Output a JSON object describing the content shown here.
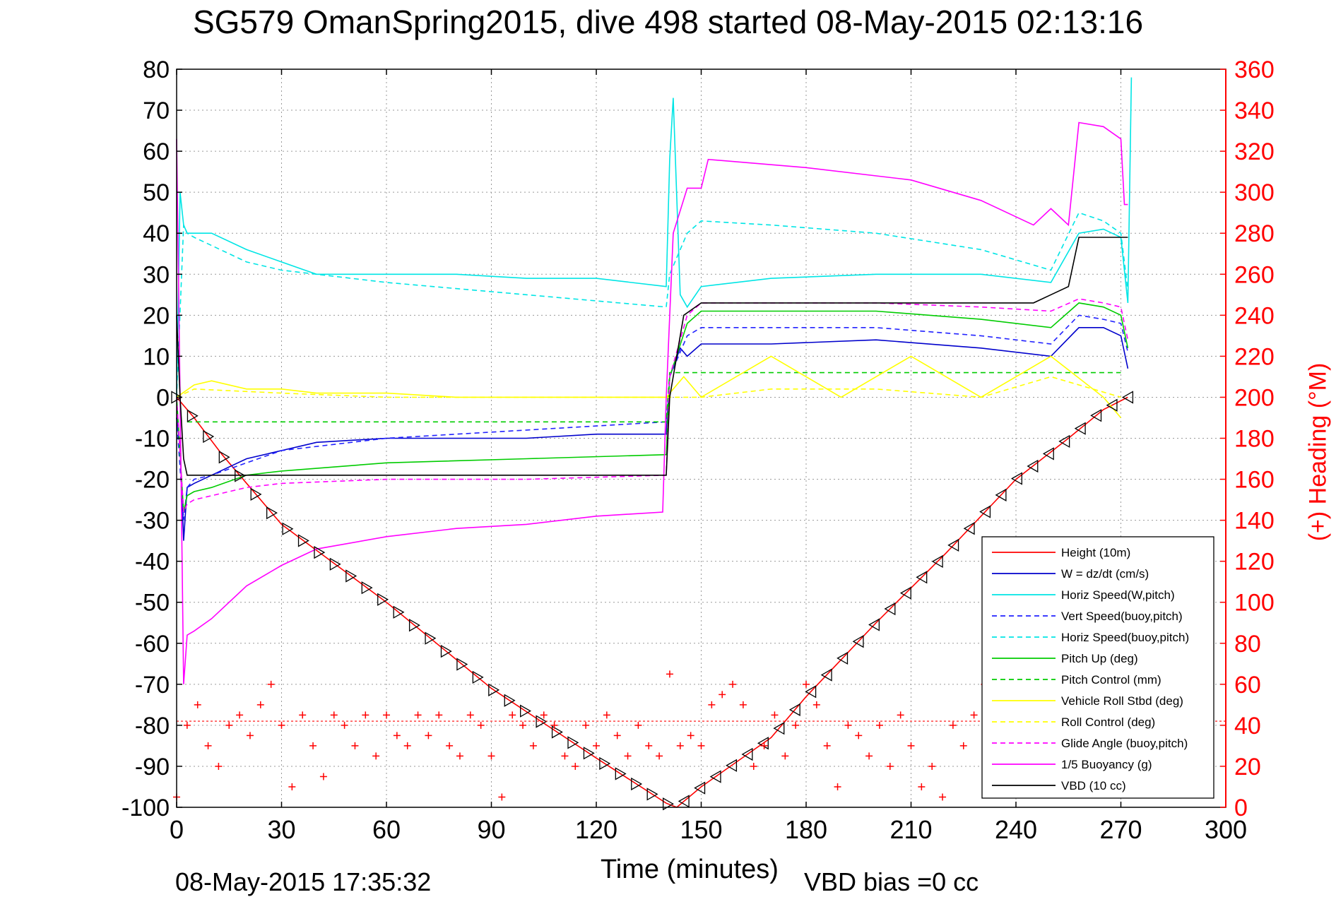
{
  "header": {
    "title": "SG579 OmanSpring2015, dive 498 started 08-May-2015 02:13:16"
  },
  "footer": {
    "date": "08-May-2015 17:35:32",
    "vbd_bias": "VBD bias =0 cc"
  },
  "chart_data": {
    "type": "line",
    "title": "SG579 OmanSpring2015, dive 498 started 08-May-2015 02:13:16",
    "xlabel": "Time (minutes)",
    "ylabel": "",
    "y2label": "(+) Heading (°M)",
    "xlim": [
      0,
      300
    ],
    "ylim": [
      -100,
      80
    ],
    "y2lim": [
      0,
      360
    ],
    "x_ticks": [
      0,
      30,
      60,
      90,
      120,
      150,
      180,
      210,
      240,
      270,
      300
    ],
    "y_ticks": [
      -100,
      -90,
      -80,
      -70,
      -60,
      -50,
      -40,
      -30,
      -20,
      -10,
      0,
      10,
      20,
      30,
      40,
      50,
      60,
      70,
      80
    ],
    "y2_ticks": [
      0,
      20,
      40,
      60,
      80,
      100,
      120,
      140,
      160,
      180,
      200,
      220,
      240,
      260,
      280,
      300,
      320,
      340,
      360
    ],
    "grid": true,
    "legend_position": "bottom-right",
    "colors": {
      "height": "#ff0000",
      "w": "#0000cc",
      "horiz_speed": "#00e5e5",
      "vert_speed": "#2222ff",
      "horiz_speed_buoy": "#00e5e5",
      "pitch_up": "#00cc00",
      "pitch_control": "#00cc00",
      "roll": "#ffff00",
      "roll_control": "#ffff00",
      "glide_angle": "#ff00ff",
      "buoyancy": "#ff00ff",
      "vbd": "#000000",
      "heading": "#ff0000"
    },
    "series": [
      {
        "name": "Height (10m)",
        "color": "#ff0000",
        "dash": "solid",
        "x": [
          0,
          5,
          13,
          30,
          60,
          90,
          120,
          140,
          143,
          150,
          170,
          180,
          200,
          220,
          240,
          255,
          265,
          272
        ],
        "y": [
          0,
          -5,
          -14,
          -31,
          -50,
          -71,
          -88,
          -99,
          -100,
          -95,
          -83,
          -73,
          -55,
          -38,
          -20,
          -10,
          -3,
          0
        ]
      },
      {
        "name": "W = dz/dt (cm/s)",
        "color": "#0000cc",
        "dash": "solid",
        "x": [
          0,
          1,
          2,
          3,
          5,
          10,
          20,
          30,
          40,
          60,
          80,
          100,
          120,
          140,
          141,
          144,
          146,
          150,
          170,
          200,
          230,
          250,
          258,
          265,
          270,
          272
        ],
        "y": [
          -5,
          -12,
          -35,
          -22,
          -21,
          -19,
          -15,
          -13,
          -11,
          -10,
          -10,
          -10,
          -9,
          -9,
          5,
          12,
          10,
          13,
          13,
          14,
          12,
          10,
          17,
          17,
          15,
          7
        ]
      },
      {
        "name": "Horiz Speed(W,pitch)",
        "color": "#00e5e5",
        "dash": "solid",
        "x": [
          0,
          1,
          2,
          3,
          5,
          10,
          20,
          30,
          40,
          60,
          80,
          100,
          120,
          140,
          141,
          142,
          144,
          146,
          150,
          170,
          200,
          230,
          250,
          258,
          265,
          270,
          272,
          273
        ],
        "y": [
          0,
          50,
          42,
          40,
          40,
          40,
          36,
          33,
          30,
          30,
          30,
          29,
          29,
          27,
          58,
          73,
          25,
          22,
          27,
          29,
          30,
          30,
          28,
          40,
          41,
          39,
          23,
          78
        ]
      },
      {
        "name": "Vert Speed(buoy,pitch)",
        "color": "#2222ff",
        "dash": "dashed",
        "x": [
          0,
          2,
          3,
          5,
          10,
          20,
          30,
          60,
          100,
          140,
          141,
          146,
          150,
          170,
          200,
          230,
          250,
          258,
          265,
          270,
          272
        ],
        "y": [
          -5,
          -30,
          -22,
          -20,
          -19,
          -16,
          -13,
          -10,
          -8,
          -6,
          5,
          15,
          17,
          17,
          17,
          15,
          13,
          20,
          19,
          18,
          11
        ]
      },
      {
        "name": "Horiz Speed(buoy,pitch)",
        "color": "#00e5e5",
        "dash": "dashed",
        "x": [
          0,
          2,
          3,
          5,
          10,
          20,
          30,
          60,
          100,
          140,
          141,
          146,
          150,
          170,
          200,
          230,
          250,
          258,
          265,
          270,
          272
        ],
        "y": [
          0,
          42,
          40,
          39,
          37,
          33,
          31,
          28,
          25,
          22,
          30,
          40,
          43,
          42,
          40,
          36,
          31,
          45,
          43,
          40,
          26
        ]
      },
      {
        "name": "Pitch Up (deg)",
        "color": "#00cc00",
        "dash": "solid",
        "x": [
          0,
          2,
          3,
          5,
          10,
          20,
          30,
          60,
          100,
          140,
          141,
          146,
          150,
          170,
          200,
          230,
          250,
          258,
          265,
          270,
          272
        ],
        "y": [
          0,
          -28,
          -24,
          -23,
          -22,
          -19,
          -18,
          -16,
          -15,
          -14,
          5,
          18,
          21,
          21,
          21,
          19,
          17,
          23,
          22,
          20,
          12
        ]
      },
      {
        "name": "Pitch Control (mm)",
        "color": "#00cc00",
        "dash": "dashed",
        "x": [
          3,
          140,
          141,
          270
        ],
        "y": [
          -6,
          -6,
          6,
          6
        ]
      },
      {
        "name": "Vehicle Roll Stbd (deg)",
        "color": "#ffff00",
        "dash": "solid",
        "x": [
          0,
          5,
          10,
          20,
          30,
          40,
          60,
          80,
          100,
          120,
          140,
          145,
          150,
          170,
          190,
          210,
          230,
          250,
          265,
          270
        ],
        "y": [
          0,
          3,
          4,
          2,
          2,
          1,
          1,
          0,
          0,
          0,
          0,
          5,
          0,
          10,
          0,
          10,
          0,
          10,
          0,
          -5
        ]
      },
      {
        "name": "Roll Control (deg)",
        "color": "#ffff00",
        "dash": "dashed",
        "x": [
          0,
          5,
          30,
          60,
          90,
          120,
          140,
          145,
          150,
          170,
          200,
          230,
          250,
          270
        ],
        "y": [
          0,
          2,
          1,
          0,
          0,
          0,
          0,
          0,
          0,
          2,
          2,
          0,
          5,
          0
        ]
      },
      {
        "name": "Glide Angle (buoy,pitch)",
        "color": "#ff00ff",
        "dash": "dashed",
        "x": [
          0,
          2,
          3,
          5,
          10,
          20,
          30,
          60,
          100,
          140,
          141,
          146,
          150,
          170,
          200,
          230,
          250,
          258,
          265,
          270,
          272
        ],
        "y": [
          0,
          -28,
          -26,
          -25,
          -24,
          -22,
          -21,
          -20,
          -20,
          -19,
          5,
          20,
          23,
          23,
          23,
          22,
          21,
          24,
          23,
          22,
          14
        ]
      },
      {
        "name": "1/5 Buoyancy (g)",
        "color": "#ff00ff",
        "dash": "solid",
        "x": [
          0,
          1,
          2,
          3,
          5,
          10,
          20,
          30,
          40,
          60,
          80,
          100,
          120,
          139,
          140,
          142,
          146,
          150,
          152,
          180,
          210,
          230,
          245,
          250,
          255,
          258,
          265,
          270,
          271,
          272
        ],
        "y": [
          63,
          0,
          -70,
          -58,
          -57,
          -54,
          -46,
          -41,
          -37,
          -34,
          -32,
          -31,
          -29,
          -28,
          0,
          40,
          51,
          51,
          58,
          56,
          53,
          48,
          42,
          46,
          42,
          67,
          66,
          63,
          47,
          47
        ]
      },
      {
        "name": "VBD (10 cc)",
        "color": "#000000",
        "dash": "solid",
        "x": [
          0,
          1,
          2,
          3,
          140,
          141,
          145,
          150,
          245,
          250,
          255,
          258,
          272
        ],
        "y": [
          20,
          0,
          -15,
          -19,
          -19,
          0,
          20,
          23,
          23,
          25,
          27,
          39,
          39
        ]
      }
    ],
    "heading": {
      "name": "Heading",
      "color": "#ff0000",
      "axis": "right",
      "mean": 42,
      "x": [
        0,
        3,
        6,
        9,
        12,
        15,
        18,
        21,
        24,
        27,
        30,
        33,
        36,
        39,
        42,
        45,
        48,
        51,
        54,
        57,
        60,
        63,
        66,
        69,
        72,
        75,
        78,
        81,
        84,
        87,
        90,
        93,
        96,
        99,
        102,
        105,
        108,
        111,
        114,
        117,
        120,
        123,
        126,
        129,
        132,
        135,
        138,
        141,
        144,
        147,
        150,
        153,
        156,
        159,
        162,
        165,
        168,
        171,
        174,
        177,
        180,
        183,
        186,
        189,
        192,
        195,
        198,
        201,
        204,
        207,
        210,
        213,
        216,
        219,
        222,
        225,
        228,
        231,
        234,
        237,
        240,
        243,
        246,
        249,
        252,
        255,
        258,
        261,
        264,
        267,
        270
      ],
      "y": [
        5,
        40,
        50,
        30,
        20,
        40,
        45,
        35,
        50,
        60,
        40,
        10,
        45,
        30,
        15,
        45,
        40,
        30,
        45,
        25,
        45,
        35,
        30,
        45,
        35,
        45,
        30,
        25,
        45,
        40,
        25,
        5,
        45,
        40,
        30,
        45,
        40,
        25,
        20,
        40,
        30,
        45,
        35,
        25,
        40,
        30,
        25,
        65,
        30,
        35,
        30,
        50,
        55,
        60,
        50,
        20,
        30,
        45,
        25,
        40,
        60,
        50,
        30,
        10,
        40,
        35,
        25,
        40,
        20,
        45,
        30,
        10,
        20,
        5,
        40,
        30,
        45,
        60,
        30,
        45,
        35,
        40,
        30,
        20,
        35,
        45,
        25,
        35,
        40,
        30,
        40
      ]
    }
  },
  "legend": {
    "items": [
      {
        "label": "Height (10m)",
        "color": "#ff0000",
        "dash": "solid"
      },
      {
        "label": "W = dz/dt (cm/s)",
        "color": "#0000cc",
        "dash": "solid"
      },
      {
        "label": "Horiz Speed(W,pitch)",
        "color": "#00e5e5",
        "dash": "solid"
      },
      {
        "label": "Vert Speed(buoy,pitch)",
        "color": "#2222ff",
        "dash": "dashed"
      },
      {
        "label": "Horiz Speed(buoy,pitch)",
        "color": "#00e5e5",
        "dash": "dashed"
      },
      {
        "label": "Pitch Up (deg)",
        "color": "#00cc00",
        "dash": "solid"
      },
      {
        "label": "Pitch Control (mm)",
        "color": "#00cc00",
        "dash": "dashed"
      },
      {
        "label": "Vehicle Roll Stbd (deg)",
        "color": "#ffff00",
        "dash": "solid"
      },
      {
        "label": "Roll Control (deg)",
        "color": "#ffff00",
        "dash": "dashed"
      },
      {
        "label": "Glide Angle (buoy,pitch)",
        "color": "#ff00ff",
        "dash": "dashed"
      },
      {
        "label": "1/5 Buoyancy (g)",
        "color": "#ff00ff",
        "dash": "solid"
      },
      {
        "label": "VBD (10 cc)",
        "color": "#000000",
        "dash": "solid"
      }
    ]
  }
}
